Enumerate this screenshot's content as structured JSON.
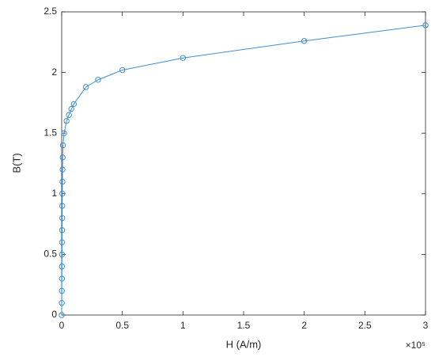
{
  "chart_data": {
    "type": "line",
    "xlabel": "H (A/m)",
    "ylabel": "B(T)",
    "x_multiplier": "×10⁵",
    "x": [
      0,
      50,
      100,
      150,
      200,
      250,
      300,
      350,
      400,
      450,
      500,
      600,
      700,
      800,
      1000,
      2000,
      4000,
      6000,
      8000,
      10000,
      20000,
      30000,
      50000,
      100000,
      200000,
      300000
    ],
    "values": [
      0,
      0.1,
      0.2,
      0.3,
      0.4,
      0.5,
      0.6,
      0.7,
      0.8,
      0.9,
      1.0,
      1.1,
      1.2,
      1.3,
      1.4,
      1.5,
      1.6,
      1.65,
      1.7,
      1.74,
      1.88,
      1.94,
      2.02,
      2.12,
      2.26,
      2.39
    ],
    "color": "#3d8fcf",
    "marker": "circle",
    "xlim": [
      0,
      300000
    ],
    "xticks": [
      0,
      {
        "value": 50000,
        "label": "0.5"
      },
      {
        "value": 100000,
        "label": "1"
      },
      {
        "value": 150000,
        "label": "1.5"
      },
      {
        "value": 200000,
        "label": "2"
      },
      {
        "value": 250000,
        "label": "2.5"
      },
      {
        "value": 300000,
        "label": "3"
      }
    ],
    "ylim": [
      0,
      2.5
    ],
    "yticks": [
      0,
      0.5,
      1,
      1.5,
      2,
      2.5
    ],
    "grid": false
  }
}
